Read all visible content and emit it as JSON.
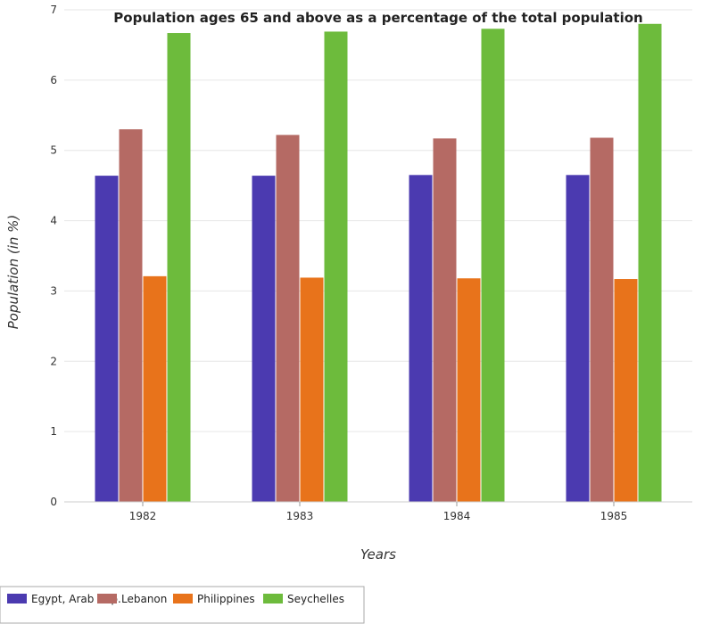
{
  "chart_data": {
    "type": "bar",
    "title": "Population ages 65 and above as a percentage of the total population",
    "xlabel": "Years",
    "ylabel": "Population (in %)",
    "categories": [
      "1982",
      "1983",
      "1984",
      "1985"
    ],
    "ylim": [
      0,
      7
    ],
    "yticks": [
      0,
      1,
      2,
      3,
      4,
      5,
      6,
      7
    ],
    "grid": true,
    "legend_position": "bottom-left",
    "series": [
      {
        "name": "Egypt, Arab Rep.",
        "color": "#4b3ab0",
        "values": [
          4.64,
          4.64,
          4.65,
          4.65
        ]
      },
      {
        "name": "Lebanon",
        "color": "#b56a64",
        "values": [
          5.3,
          5.22,
          5.17,
          5.18
        ]
      },
      {
        "name": "Philippines",
        "color": "#e8731b",
        "values": [
          3.21,
          3.19,
          3.18,
          3.17
        ]
      },
      {
        "name": "Seychelles",
        "color": "#6dbb3c",
        "values": [
          6.67,
          6.69,
          6.73,
          6.8
        ]
      }
    ]
  }
}
